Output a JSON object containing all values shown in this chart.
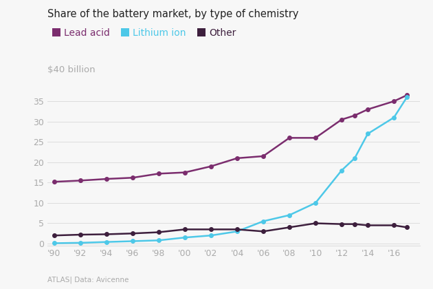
{
  "title": "Share of the battery market, by type of chemistry",
  "ylabel_text": "$40 billion",
  "source_text": "Data: Avicenne",
  "atlas_text": "ATLAS|",
  "years": [
    1990,
    1992,
    1994,
    1996,
    1998,
    2000,
    2002,
    2004,
    2006,
    2008,
    2010,
    2012,
    2013,
    2014,
    2016,
    2017
  ],
  "lead_acid": [
    15.2,
    15.5,
    15.9,
    16.2,
    17.2,
    17.5,
    19.0,
    21.0,
    21.5,
    26.0,
    26.0,
    30.5,
    31.5,
    33.0,
    35.0,
    36.5
  ],
  "lithium_ion": [
    0.1,
    0.2,
    0.4,
    0.6,
    0.8,
    1.5,
    2.0,
    3.0,
    5.5,
    7.0,
    10.0,
    18.0,
    21.0,
    27.0,
    31.0,
    36.0
  ],
  "other": [
    2.0,
    2.2,
    2.3,
    2.5,
    2.8,
    3.5,
    3.5,
    3.5,
    3.0,
    4.0,
    5.0,
    4.8,
    4.8,
    4.5,
    4.5,
    4.0
  ],
  "lead_acid_color": "#7b2d6e",
  "lithium_ion_color": "#4dc8e8",
  "other_color": "#3d1f3d",
  "background_color": "#f7f7f7",
  "grid_color": "#dddddd",
  "title_color": "#222222",
  "label_color": "#aaaaaa",
  "legend_colors": [
    "#7b2d6e",
    "#4dc8e8",
    "#3d1f3d"
  ],
  "legend_labels": [
    "Lead acid",
    "Lithium ion",
    "Other"
  ],
  "ylim": [
    -0.5,
    40
  ],
  "xlim": [
    1989.5,
    2018.0
  ],
  "yticks": [
    0,
    5,
    10,
    15,
    20,
    25,
    30,
    35
  ],
  "xtick_years": [
    1990,
    1992,
    1994,
    1996,
    1998,
    2000,
    2002,
    2004,
    2006,
    2008,
    2010,
    2012,
    2014,
    2016
  ],
  "xtick_labels": [
    "'90",
    "'92",
    "'94",
    "'96",
    "'98",
    "'00",
    "'02",
    "'04",
    "'06",
    "'08",
    "'10",
    "'12",
    "'14",
    "'16"
  ],
  "marker_size": 4,
  "line_width": 1.8
}
